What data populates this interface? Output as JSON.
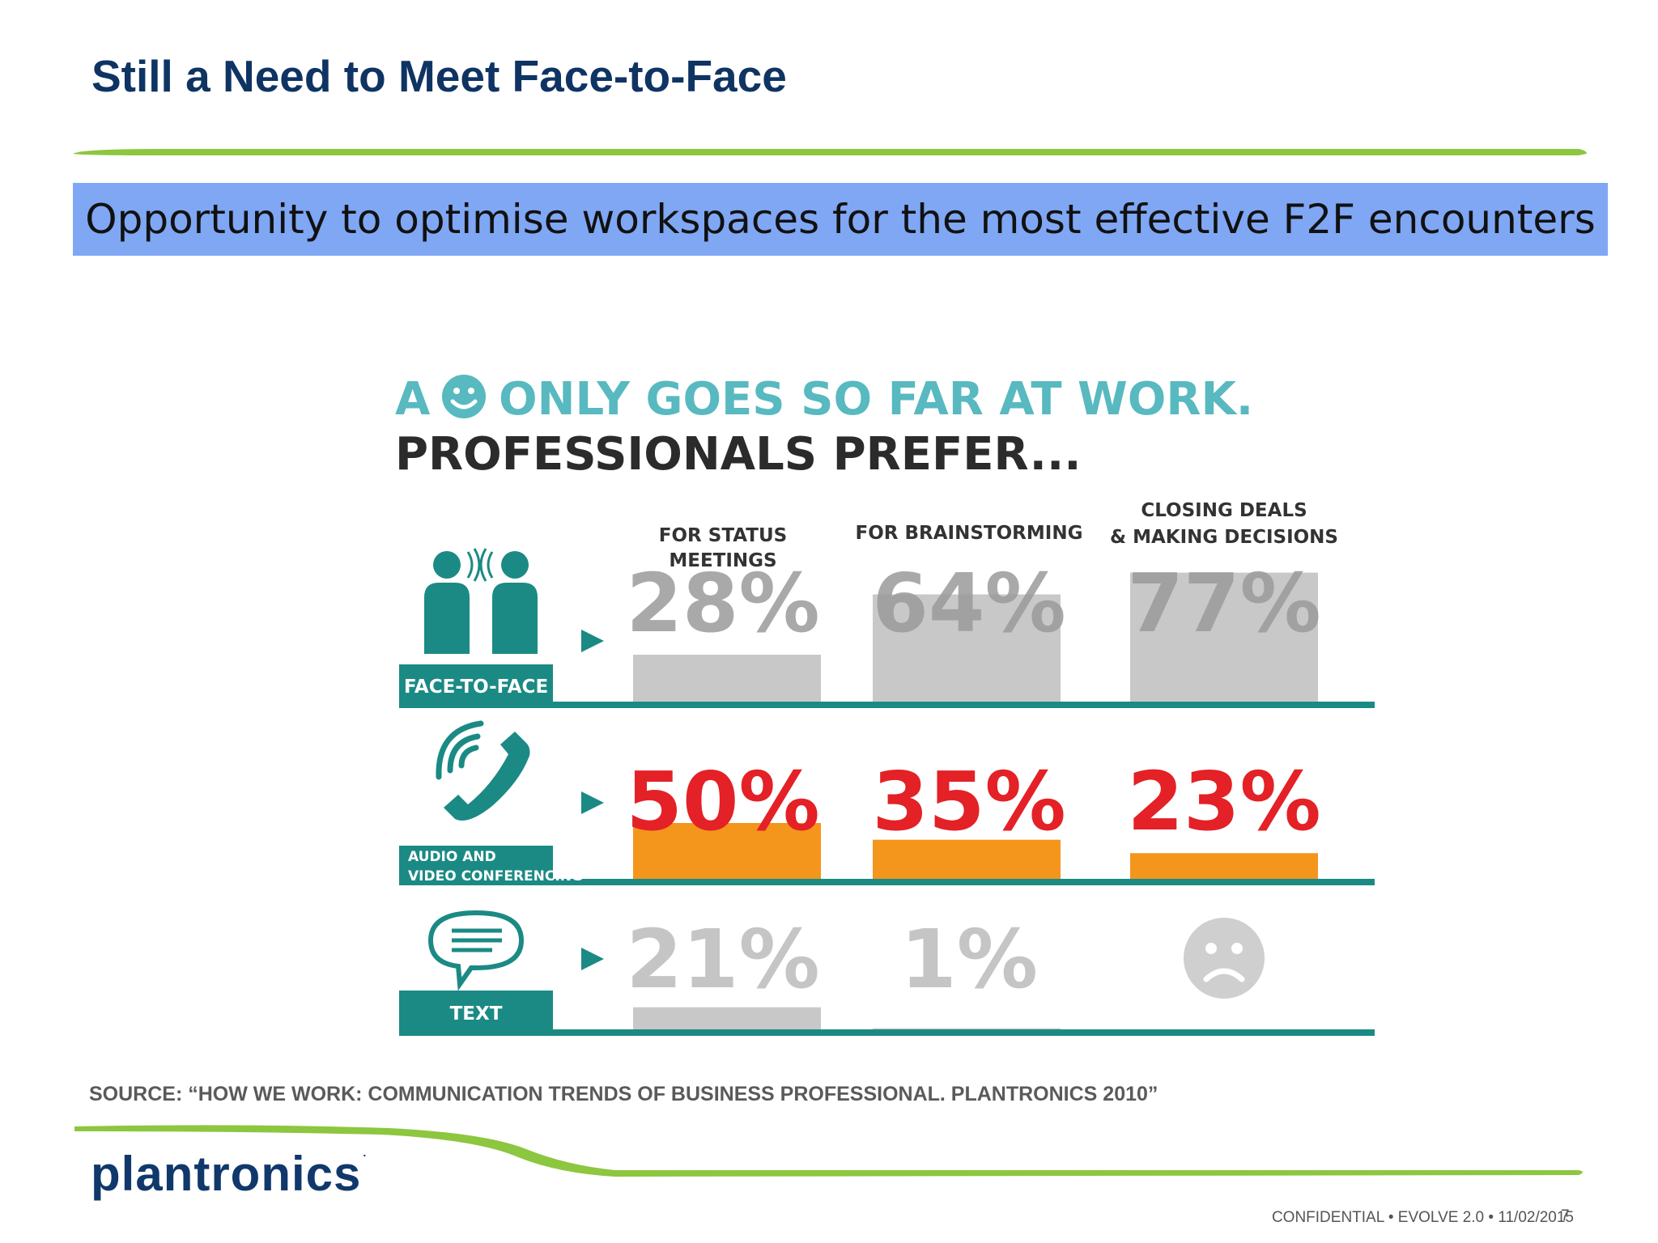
{
  "slide": {
    "title": "Still a Need to Meet Face-to-Face",
    "banner": "Opportunity to optimise workspaces for the most effective F2F encounters",
    "source": "SOURCE: “HOW WE WORK: COMMUNICATION TRENDS OF BUSINESS PROFESSIONAL. PLANTRONICS 2010”",
    "logo": "plantronics",
    "logo_mark": ".",
    "footer": "CONFIDENTIAL  •  EVOLVE 2.0  •  11/02/2015",
    "page_number": "7"
  },
  "colors": {
    "title": "#0f3463",
    "banner": "#7fa7f4",
    "teal": "#1b8a84",
    "teal_light": "#58b9c0",
    "orange": "#f4951c",
    "red": "#e32126",
    "gray_bar": "#c8c8c8",
    "green_rule": "#8dc63f"
  },
  "chart_data": {
    "type": "bar",
    "title_line1_pre": "A",
    "title_line1_icon": "smiley-icon",
    "title_line1_post": "ONLY GOES SO FAR AT WORK.",
    "title_line2": "PROFESSIONALS PREFER...",
    "categories": [
      [
        "FOR STATUS",
        "MEETINGS"
      ],
      [
        "FOR BRAINSTORMING"
      ],
      [
        "CLOSING DEALS",
        "& MAKING DECISIONS"
      ]
    ],
    "series": [
      {
        "name": "FACE-TO-FACE",
        "label_lines": [
          "FACE-TO-FACE"
        ],
        "icon": "people-talking-icon",
        "values": [
          28,
          64,
          77
        ],
        "labels": [
          "28%",
          "64%",
          "77%"
        ]
      },
      {
        "name": "AUDIO AND VIDEO CONFERENCING",
        "label_lines": [
          "AUDIO AND",
          "VIDEO CONFERENCING"
        ],
        "icon": "phone-icon",
        "values": [
          50,
          35,
          23
        ],
        "labels": [
          "50%",
          "35%",
          "23%"
        ]
      },
      {
        "name": "TEXT",
        "label_lines": [
          "TEXT"
        ],
        "icon": "speech-bubble-icon",
        "values": [
          21,
          1,
          null
        ],
        "labels": [
          "21%",
          "1%",
          ""
        ],
        "missing_icon": "sad-face-icon"
      }
    ],
    "ylim": [
      0,
      100
    ],
    "legend": "none",
    "grid": false
  }
}
